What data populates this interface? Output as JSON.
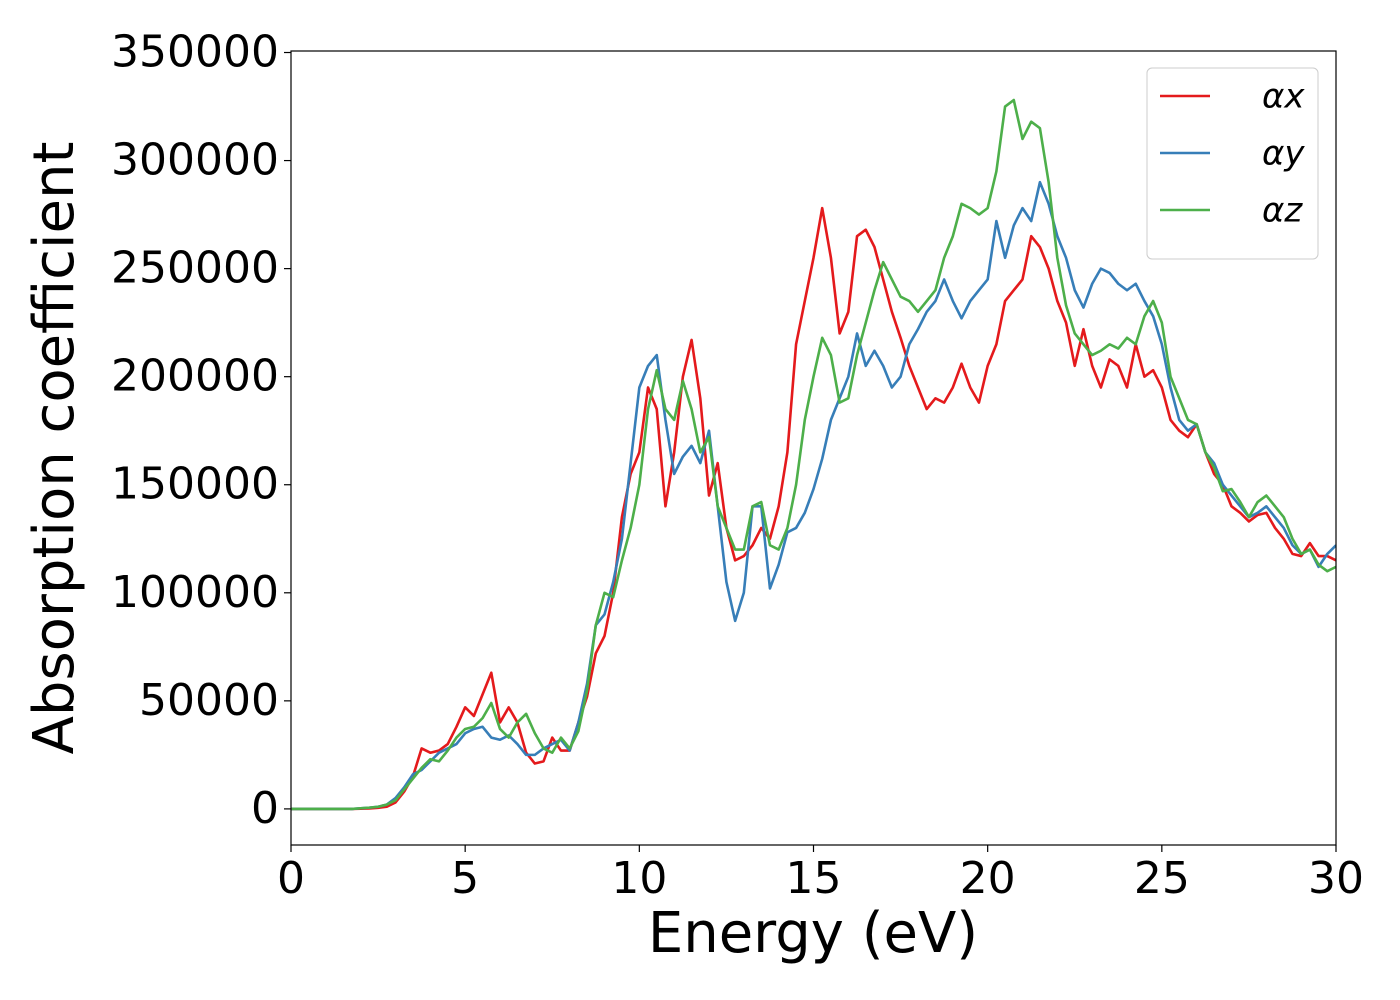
{
  "chart_data": {
    "type": "line",
    "x_label": "Energy (eV)",
    "y_label": "Absorption coefficient",
    "xlim": [
      0,
      30
    ],
    "ylim": [
      -16700,
      350700
    ],
    "xticks": [
      0,
      5,
      10,
      15,
      20,
      25,
      30
    ],
    "yticks": [
      0,
      50000,
      100000,
      150000,
      200000,
      250000,
      300000,
      350000
    ],
    "legend": "upper right",
    "grid": false,
    "x": [
      0,
      0.25,
      0.5,
      0.75,
      1,
      1.25,
      1.5,
      1.75,
      2,
      2.25,
      2.5,
      2.75,
      3,
      3.25,
      3.5,
      3.75,
      4,
      4.25,
      4.5,
      4.75,
      5,
      5.25,
      5.5,
      5.75,
      6,
      6.25,
      6.5,
      6.75,
      7,
      7.25,
      7.5,
      7.75,
      8,
      8.25,
      8.5,
      8.75,
      9,
      9.25,
      9.5,
      9.75,
      10,
      10.25,
      10.5,
      10.75,
      11,
      11.25,
      11.5,
      11.75,
      12,
      12.25,
      12.5,
      12.75,
      13,
      13.25,
      13.5,
      13.75,
      14,
      14.25,
      14.5,
      14.75,
      15,
      15.25,
      15.5,
      15.75,
      16,
      16.25,
      16.5,
      16.75,
      17,
      17.25,
      17.5,
      17.75,
      18,
      18.25,
      18.5,
      18.75,
      19,
      19.25,
      19.5,
      19.75,
      20,
      20.25,
      20.5,
      20.75,
      21,
      21.25,
      21.5,
      21.75,
      22,
      22.25,
      22.5,
      22.75,
      23,
      23.25,
      23.5,
      23.75,
      24,
      24.25,
      24.5,
      24.75,
      25,
      25.25,
      25.5,
      25.75,
      26,
      26.25,
      26.5,
      26.75,
      27,
      27.25,
      27.5,
      27.75,
      28,
      28.25,
      28.5,
      28.75,
      29,
      29.25,
      29.5,
      29.75,
      30
    ],
    "series": [
      {
        "name": "αx",
        "color": "#e41a1c",
        "values": [
          0,
          0,
          0,
          0,
          0,
          0,
          0,
          0,
          100,
          200,
          500,
          1000,
          3000,
          8000,
          15000,
          28000,
          26000,
          27000,
          30000,
          38000,
          47000,
          43000,
          53000,
          63000,
          40000,
          47000,
          40000,
          26000,
          21000,
          22000,
          33000,
          27000,
          27000,
          40000,
          52000,
          72000,
          80000,
          100000,
          135000,
          155000,
          165000,
          195000,
          185000,
          140000,
          165000,
          200000,
          217000,
          190000,
          145000,
          160000,
          130000,
          115000,
          117000,
          122000,
          130000,
          125000,
          140000,
          165000,
          215000,
          235000,
          255000,
          278000,
          255000,
          220000,
          230000,
          265000,
          268000,
          260000,
          245000,
          230000,
          218000,
          205000,
          195000,
          185000,
          190000,
          188000,
          195000,
          206000,
          195000,
          188000,
          205000,
          215000,
          235000,
          240000,
          245000,
          265000,
          260000,
          250000,
          235000,
          225000,
          205000,
          222000,
          205000,
          195000,
          208000,
          205000,
          195000,
          215000,
          200000,
          203000,
          195000,
          180000,
          175000,
          172000,
          178000,
          165000,
          155000,
          150000,
          140000,
          137000,
          133000,
          136000,
          137000,
          130000,
          125000,
          118000,
          117000,
          123000,
          117000,
          117000,
          115000
        ]
      },
      {
        "name": "αy",
        "color": "#377eb8",
        "values": [
          0,
          0,
          0,
          0,
          0,
          0,
          0,
          0,
          300,
          600,
          1000,
          2000,
          5000,
          10000,
          16000,
          18000,
          22000,
          26000,
          28000,
          30000,
          35000,
          37000,
          38000,
          33000,
          32000,
          34000,
          30000,
          25000,
          25000,
          28000,
          30000,
          32000,
          27000,
          40000,
          58000,
          85000,
          90000,
          105000,
          125000,
          160000,
          195000,
          205000,
          210000,
          180000,
          155000,
          163000,
          168000,
          160000,
          175000,
          140000,
          105000,
          87000,
          100000,
          140000,
          140000,
          102000,
          113000,
          128000,
          130000,
          137000,
          148000,
          162000,
          180000,
          190000,
          200000,
          220000,
          205000,
          212000,
          205000,
          195000,
          200000,
          215000,
          222000,
          230000,
          235000,
          245000,
          235000,
          227000,
          235000,
          240000,
          245000,
          272000,
          255000,
          270000,
          278000,
          272000,
          290000,
          280000,
          265000,
          255000,
          240000,
          232000,
          243000,
          250000,
          248000,
          243000,
          240000,
          243000,
          235000,
          228000,
          215000,
          195000,
          180000,
          175000,
          178000,
          165000,
          160000,
          150000,
          145000,
          140000,
          135000,
          137000,
          140000,
          135000,
          130000,
          122000,
          118000,
          120000,
          112000,
          118000,
          122000
        ]
      },
      {
        "name": "αz",
        "color": "#4daf4a",
        "values": [
          0,
          0,
          0,
          0,
          0,
          0,
          0,
          0,
          300,
          600,
          1000,
          2000,
          4000,
          9000,
          14000,
          19000,
          23000,
          22000,
          27000,
          33000,
          37000,
          38000,
          42000,
          49000,
          37000,
          33000,
          40000,
          44000,
          35000,
          28000,
          26000,
          33000,
          28000,
          36000,
          55000,
          85000,
          100000,
          98000,
          115000,
          130000,
          150000,
          185000,
          203000,
          185000,
          180000,
          198000,
          185000,
          165000,
          172000,
          140000,
          130000,
          120000,
          120000,
          140000,
          142000,
          122000,
          120000,
          130000,
          150000,
          180000,
          200000,
          218000,
          210000,
          188000,
          190000,
          210000,
          225000,
          240000,
          253000,
          245000,
          237000,
          235000,
          230000,
          235000,
          240000,
          255000,
          265000,
          280000,
          278000,
          275000,
          278000,
          295000,
          325000,
          328000,
          310000,
          318000,
          315000,
          290000,
          255000,
          233000,
          220000,
          215000,
          210000,
          212000,
          215000,
          213000,
          218000,
          215000,
          228000,
          235000,
          225000,
          200000,
          190000,
          180000,
          178000,
          165000,
          158000,
          147000,
          148000,
          142000,
          135000,
          142000,
          145000,
          140000,
          135000,
          125000,
          118000,
          120000,
          113000,
          110000,
          112000
        ]
      }
    ]
  }
}
